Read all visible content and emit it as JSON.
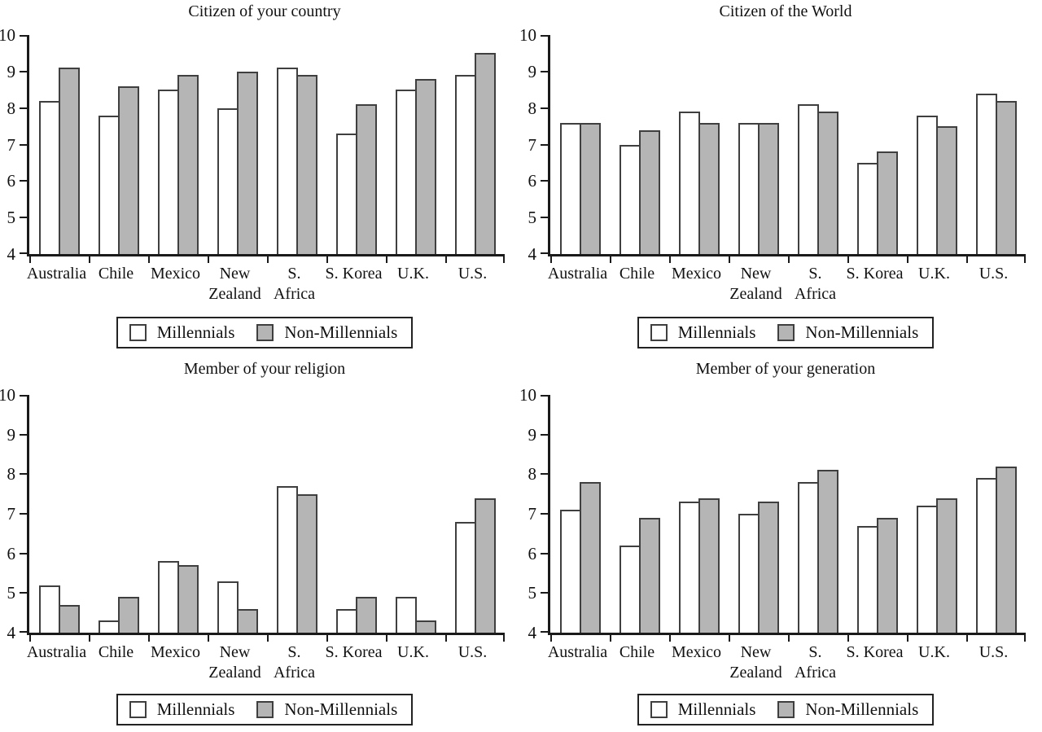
{
  "colors": {
    "millennials_fill": "#ffffff",
    "non_millennials_fill": "#b5b5b5",
    "bar_border": "#3f3f3f",
    "axis": "#1a1a1a",
    "text": "#111111"
  },
  "legend": {
    "items": [
      {
        "label": "Millennials",
        "color": "#ffffff"
      },
      {
        "label": "Non-Millennials",
        "color": "#b5b5b5"
      }
    ],
    "position": "below-chart"
  },
  "axis": {
    "y_ticks": [
      10,
      9,
      8,
      7,
      6,
      5,
      4
    ],
    "ylim": [
      4,
      10
    ],
    "grid": "off"
  },
  "category_lines": [
    [
      "Australia"
    ],
    [
      "Chile"
    ],
    [
      "Mexico"
    ],
    [
      "New",
      "Zealand"
    ],
    [
      "S.",
      "Africa"
    ],
    [
      "S. Korea"
    ],
    [
      "U.K."
    ],
    [
      "U.S."
    ]
  ],
  "chart_data": [
    {
      "type": "bar",
      "title": "Citizen of your country",
      "categories": [
        "Australia",
        "Chile",
        "Mexico",
        "New Zealand",
        "S. Africa",
        "S. Korea",
        "U.K.",
        "U.S."
      ],
      "series": [
        {
          "name": "Millennials",
          "values": [
            8.2,
            7.8,
            8.5,
            8.0,
            9.1,
            7.3,
            8.5,
            8.9
          ]
        },
        {
          "name": "Non-Millennials",
          "values": [
            9.1,
            8.6,
            8.9,
            9.0,
            8.9,
            8.1,
            8.8,
            9.5
          ]
        }
      ],
      "ylim": [
        4,
        10
      ]
    },
    {
      "type": "bar",
      "title": "Citizen of the World",
      "categories": [
        "Australia",
        "Chile",
        "Mexico",
        "New Zealand",
        "S. Africa",
        "S. Korea",
        "U.K.",
        "U.S."
      ],
      "series": [
        {
          "name": "Millennials",
          "values": [
            7.6,
            7.0,
            7.9,
            7.6,
            8.1,
            6.5,
            7.8,
            8.4
          ]
        },
        {
          "name": "Non-Millennials",
          "values": [
            7.6,
            7.4,
            7.6,
            7.6,
            7.9,
            6.8,
            7.5,
            8.2
          ]
        }
      ],
      "ylim": [
        4,
        10
      ]
    },
    {
      "type": "bar",
      "title": "Member of your religion",
      "categories": [
        "Australia",
        "Chile",
        "Mexico",
        "New Zealand",
        "S. Africa",
        "S. Korea",
        "U.K.",
        "U.S."
      ],
      "series": [
        {
          "name": "Millennials",
          "values": [
            5.2,
            4.3,
            5.8,
            5.3,
            7.7,
            4.6,
            4.9,
            6.8
          ]
        },
        {
          "name": "Non-Millennials",
          "values": [
            4.7,
            4.9,
            5.7,
            4.6,
            7.5,
            4.9,
            4.3,
            7.4
          ]
        }
      ],
      "ylim": [
        4,
        10
      ]
    },
    {
      "type": "bar",
      "title": "Member of your generation",
      "categories": [
        "Australia",
        "Chile",
        "Mexico",
        "New Zealand",
        "S. Africa",
        "S. Korea",
        "U.K.",
        "U.S."
      ],
      "series": [
        {
          "name": "Millennials",
          "values": [
            7.1,
            6.2,
            7.3,
            7.0,
            7.8,
            6.7,
            7.2,
            7.9
          ]
        },
        {
          "name": "Non-Millennials",
          "values": [
            7.8,
            6.9,
            7.4,
            7.3,
            8.1,
            6.9,
            7.4,
            8.2
          ]
        }
      ],
      "ylim": [
        4,
        10
      ]
    }
  ]
}
